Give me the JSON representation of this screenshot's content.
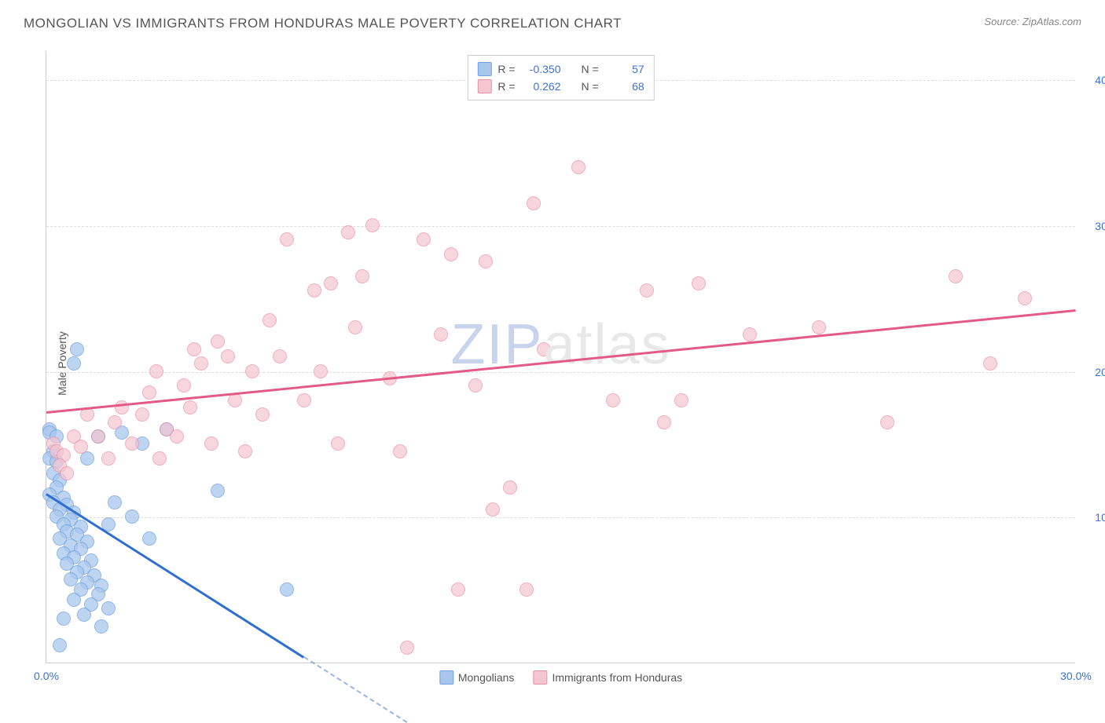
{
  "title": "MONGOLIAN VS IMMIGRANTS FROM HONDURAS MALE POVERTY CORRELATION CHART",
  "source_label": "Source:",
  "source_name": "ZipAtlas.com",
  "ylabel": "Male Poverty",
  "watermark_a": "ZIP",
  "watermark_b": "atlas",
  "chart": {
    "type": "scatter",
    "xlim": [
      0,
      30
    ],
    "ylim": [
      0,
      42
    ],
    "xticks": [
      {
        "v": 0,
        "label": "0.0%"
      },
      {
        "v": 30,
        "label": "30.0%"
      }
    ],
    "yticks": [
      {
        "v": 10,
        "label": "10.0%"
      },
      {
        "v": 20,
        "label": "20.0%"
      },
      {
        "v": 30,
        "label": "30.0%"
      },
      {
        "v": 40,
        "label": "40.0%"
      }
    ],
    "grid_color": "#dddddd",
    "axis_color": "#cccccc",
    "background_color": "#ffffff",
    "point_radius": 9,
    "series": [
      {
        "name": "Mongolians",
        "fill": "#a9c7ee",
        "stroke": "#6fa0e0",
        "opacity": 0.75,
        "R": "-0.350",
        "N": "57",
        "trend": {
          "x1": 0,
          "y1": 11.7,
          "x2": 7.5,
          "y2": 0.5,
          "color": "#2f6fd0",
          "dash_from_x": 7.5,
          "dash_to_x": 10.5
        },
        "points": [
          [
            0.1,
            16.0
          ],
          [
            0.1,
            15.8
          ],
          [
            0.2,
            14.5
          ],
          [
            0.1,
            14.0
          ],
          [
            0.3,
            13.8
          ],
          [
            0.2,
            13.0
          ],
          [
            0.4,
            12.5
          ],
          [
            0.3,
            12.0
          ],
          [
            0.1,
            11.5
          ],
          [
            0.5,
            11.3
          ],
          [
            0.2,
            11.0
          ],
          [
            0.6,
            10.8
          ],
          [
            0.4,
            10.5
          ],
          [
            0.8,
            10.3
          ],
          [
            0.3,
            10.0
          ],
          [
            0.7,
            9.8
          ],
          [
            0.5,
            9.5
          ],
          [
            1.0,
            9.3
          ],
          [
            0.6,
            9.0
          ],
          [
            0.9,
            8.8
          ],
          [
            0.4,
            8.5
          ],
          [
            1.2,
            8.3
          ],
          [
            0.7,
            8.0
          ],
          [
            1.0,
            7.8
          ],
          [
            0.5,
            7.5
          ],
          [
            0.8,
            7.2
          ],
          [
            1.3,
            7.0
          ],
          [
            0.6,
            6.8
          ],
          [
            1.1,
            6.5
          ],
          [
            0.9,
            6.2
          ],
          [
            1.4,
            6.0
          ],
          [
            0.7,
            5.7
          ],
          [
            1.2,
            5.5
          ],
          [
            1.6,
            5.3
          ],
          [
            1.0,
            5.0
          ],
          [
            1.5,
            4.7
          ],
          [
            0.8,
            4.3
          ],
          [
            1.3,
            4.0
          ],
          [
            1.8,
            3.7
          ],
          [
            1.1,
            3.3
          ],
          [
            0.5,
            3.0
          ],
          [
            1.6,
            2.5
          ],
          [
            0.4,
            1.2
          ],
          [
            0.8,
            20.5
          ],
          [
            0.9,
            21.5
          ],
          [
            1.2,
            14.0
          ],
          [
            1.5,
            15.5
          ],
          [
            1.8,
            9.5
          ],
          [
            2.0,
            11.0
          ],
          [
            2.2,
            15.8
          ],
          [
            2.5,
            10.0
          ],
          [
            2.8,
            15.0
          ],
          [
            3.0,
            8.5
          ],
          [
            3.5,
            16.0
          ],
          [
            5.0,
            11.8
          ],
          [
            7.0,
            5.0
          ],
          [
            0.3,
            15.5
          ]
        ]
      },
      {
        "name": "Immigrants from Honduras",
        "fill": "#f4c6d0",
        "stroke": "#e98fa8",
        "opacity": 0.7,
        "R": "0.262",
        "N": "68",
        "trend": {
          "x1": 0,
          "y1": 17.3,
          "x2": 30,
          "y2": 24.3,
          "color": "#e35a86"
        },
        "points": [
          [
            0.2,
            15.0
          ],
          [
            0.3,
            14.5
          ],
          [
            0.5,
            14.2
          ],
          [
            0.4,
            13.5
          ],
          [
            0.6,
            13.0
          ],
          [
            0.8,
            15.5
          ],
          [
            1.0,
            14.8
          ],
          [
            1.2,
            17.0
          ],
          [
            1.5,
            15.5
          ],
          [
            1.8,
            14.0
          ],
          [
            2.0,
            16.5
          ],
          [
            2.2,
            17.5
          ],
          [
            2.5,
            15.0
          ],
          [
            2.8,
            17.0
          ],
          [
            3.0,
            18.5
          ],
          [
            3.2,
            20.0
          ],
          [
            3.5,
            16.0
          ],
          [
            3.8,
            15.5
          ],
          [
            4.0,
            19.0
          ],
          [
            4.2,
            17.5
          ],
          [
            4.5,
            20.5
          ],
          [
            4.8,
            15.0
          ],
          [
            5.0,
            22.0
          ],
          [
            5.5,
            18.0
          ],
          [
            5.8,
            14.5
          ],
          [
            6.0,
            20.0
          ],
          [
            6.3,
            17.0
          ],
          [
            6.5,
            23.5
          ],
          [
            6.8,
            21.0
          ],
          [
            7.0,
            29.0
          ],
          [
            7.5,
            18.0
          ],
          [
            7.8,
            25.5
          ],
          [
            8.0,
            20.0
          ],
          [
            8.3,
            26.0
          ],
          [
            8.5,
            15.0
          ],
          [
            8.8,
            29.5
          ],
          [
            9.0,
            23.0
          ],
          [
            9.5,
            30.0
          ],
          [
            10.0,
            19.5
          ],
          [
            10.3,
            14.5
          ],
          [
            10.5,
            1.0
          ],
          [
            11.0,
            29.0
          ],
          [
            11.5,
            22.5
          ],
          [
            11.8,
            28.0
          ],
          [
            12.0,
            5.0
          ],
          [
            12.5,
            19.0
          ],
          [
            12.8,
            27.5
          ],
          [
            13.0,
            10.5
          ],
          [
            13.5,
            12.0
          ],
          [
            14.0,
            5.0
          ],
          [
            14.2,
            31.5
          ],
          [
            14.5,
            21.5
          ],
          [
            15.5,
            34.0
          ],
          [
            16.5,
            18.0
          ],
          [
            17.5,
            25.5
          ],
          [
            18.0,
            16.5
          ],
          [
            18.5,
            18.0
          ],
          [
            19.0,
            26.0
          ],
          [
            20.5,
            22.5
          ],
          [
            22.5,
            23.0
          ],
          [
            24.5,
            16.5
          ],
          [
            26.5,
            26.5
          ],
          [
            27.5,
            20.5
          ],
          [
            28.5,
            25.0
          ],
          [
            3.3,
            14.0
          ],
          [
            4.3,
            21.5
          ],
          [
            5.3,
            21.0
          ],
          [
            9.2,
            26.5
          ]
        ]
      }
    ]
  },
  "legend_top_stats": {
    "r_label": "R =",
    "n_label": "N ="
  },
  "legend_bottom": [
    {
      "label": "Mongolians",
      "fill": "#a9c7ee",
      "stroke": "#6fa0e0"
    },
    {
      "label": "Immigrants from Honduras",
      "fill": "#f4c6d0",
      "stroke": "#e98fa8"
    }
  ]
}
